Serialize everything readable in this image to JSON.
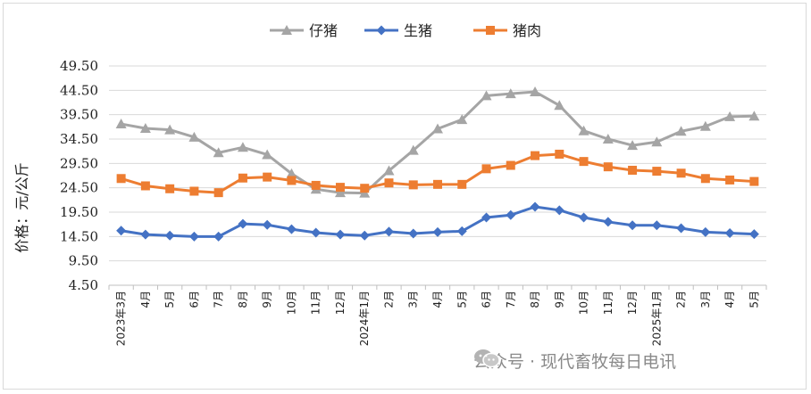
{
  "chart_data": {
    "type": "line",
    "ylabel": "价格：元/公斤",
    "ylim": [
      4.5,
      49.5
    ],
    "yticks": [
      "49.50",
      "44.50",
      "39.50",
      "34.50",
      "29.50",
      "24.50",
      "19.50",
      "14.50",
      "9.50",
      "4.50"
    ],
    "categories": [
      "2023年3月",
      "4月",
      "5月",
      "6月",
      "7月",
      "8月",
      "9月",
      "10月",
      "11月",
      "12月",
      "2024年1月",
      "2月",
      "3月",
      "4月",
      "5月",
      "6月",
      "7月",
      "8月",
      "9月",
      "10月",
      "11月",
      "12月",
      "2025年1月",
      "2月",
      "3月",
      "4月",
      "5月"
    ],
    "legend_position": "top",
    "grid": "horizontal",
    "series": [
      {
        "name": "仔猪",
        "color": "#a5a5a5",
        "marker": "triangle",
        "values": [
          37.6,
          36.7,
          36.4,
          34.9,
          31.7,
          32.8,
          31.3,
          27.4,
          24.2,
          23.5,
          23.4,
          28.0,
          32.2,
          36.6,
          38.5,
          43.4,
          43.8,
          44.2,
          41.4,
          36.2,
          34.5,
          33.2,
          33.9,
          36.1,
          37.1,
          39.1,
          39.2
        ]
      },
      {
        "name": "生猪",
        "color": "#4472c4",
        "marker": "diamond",
        "values": [
          15.7,
          14.9,
          14.7,
          14.5,
          14.5,
          17.1,
          16.9,
          16.0,
          15.3,
          14.9,
          14.7,
          15.5,
          15.1,
          15.4,
          15.6,
          18.4,
          18.9,
          20.6,
          19.9,
          18.4,
          17.5,
          16.8,
          16.8,
          16.2,
          15.4,
          15.2,
          15.0
        ]
      },
      {
        "name": "猪肉",
        "color": "#ed7d31",
        "marker": "square",
        "values": [
          26.4,
          24.9,
          24.3,
          23.8,
          23.5,
          26.5,
          26.7,
          26.0,
          25.0,
          24.6,
          24.4,
          25.5,
          25.1,
          25.2,
          25.2,
          28.4,
          29.1,
          31.1,
          31.4,
          29.9,
          28.8,
          28.1,
          27.9,
          27.5,
          26.4,
          26.1,
          25.8
        ]
      }
    ]
  },
  "watermark": {
    "text": "公众号 · 现代畜牧每日电讯"
  }
}
